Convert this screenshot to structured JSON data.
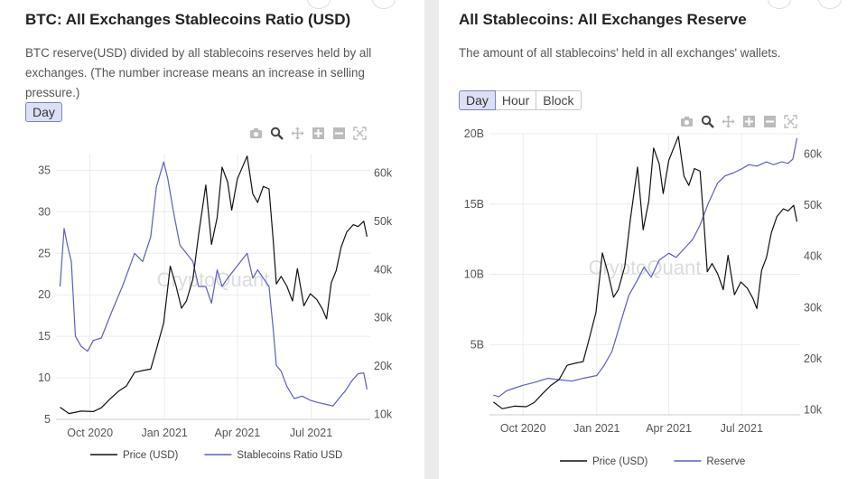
{
  "watermark": "CryptoQuant",
  "colors": {
    "price": "#111111",
    "series": "#5b5fbf",
    "grid": "#ececec"
  },
  "icons": [
    "camera-icon",
    "zoom-icon",
    "pan-icon",
    "zoom-in-icon",
    "zoom-out-icon",
    "autoscale-icon"
  ],
  "panels": [
    {
      "title": "BTC: All Exchanges Stablecoins Ratio (USD)",
      "description": "BTC reserve(USD) divided by all stablecoins reserves held by all exchanges. (The number increase means an increase in selling pressure.)",
      "tabs": [
        {
          "label": "Day",
          "active": true
        }
      ]
    },
    {
      "title": "All Stablecoins: All Exchanges Reserve",
      "description": "The amount of all stablecoins' held in all exchanges' wallets.",
      "tabs": [
        {
          "label": "Day",
          "active": true
        },
        {
          "label": "Hour",
          "active": false
        },
        {
          "label": "Block",
          "active": false
        }
      ]
    }
  ],
  "chart_data": [
    {
      "type": "line",
      "x_type": "date",
      "x_ticks": [
        "Oct 2020",
        "Jan 2021",
        "Apr 2021",
        "Jul 2021"
      ],
      "y_left": {
        "range": [
          5,
          37
        ],
        "ticks": [
          "5",
          "10",
          "15",
          "20",
          "25",
          "30",
          "35"
        ]
      },
      "y_right": {
        "range": [
          9000,
          64000
        ],
        "ticks": [
          "10k",
          "20k",
          "30k",
          "40k",
          "50k",
          "60k"
        ]
      },
      "grid": true,
      "legend_position": "bottom",
      "series": [
        {
          "name": "Price (USD)",
          "axis": "right",
          "points": [
            [
              "2020-08-25",
              11500
            ],
            [
              "2020-09-05",
              10200
            ],
            [
              "2020-09-20",
              10700
            ],
            [
              "2020-10-05",
              10600
            ],
            [
              "2020-10-15",
              11400
            ],
            [
              "2020-10-25",
              13100
            ],
            [
              "2020-11-05",
              14800
            ],
            [
              "2020-11-15",
              15900
            ],
            [
              "2020-11-25",
              18700
            ],
            [
              "2020-12-05",
              19100
            ],
            [
              "2020-12-15",
              19400
            ],
            [
              "2020-12-22",
              23500
            ],
            [
              "2020-12-31",
              29000
            ],
            [
              "2021-01-08",
              40700
            ],
            [
              "2021-01-15",
              36800
            ],
            [
              "2021-01-22",
              32000
            ],
            [
              "2021-01-28",
              33500
            ],
            [
              "2021-02-05",
              38000
            ],
            [
              "2021-02-12",
              47200
            ],
            [
              "2021-02-21",
              57500
            ],
            [
              "2021-02-28",
              45200
            ],
            [
              "2021-03-07",
              50800
            ],
            [
              "2021-03-13",
              61200
            ],
            [
              "2021-03-20",
              58100
            ],
            [
              "2021-03-25",
              52300
            ],
            [
              "2021-04-01",
              58800
            ],
            [
              "2021-04-13",
              63500
            ],
            [
              "2021-04-20",
              55700
            ],
            [
              "2021-04-26",
              53900
            ],
            [
              "2021-05-03",
              57200
            ],
            [
              "2021-05-10",
              56700
            ],
            [
              "2021-05-15",
              46400
            ],
            [
              "2021-05-19",
              37000
            ],
            [
              "2021-05-25",
              38600
            ],
            [
              "2021-06-01",
              36600
            ],
            [
              "2021-06-08",
              33500
            ],
            [
              "2021-06-14",
              40200
            ],
            [
              "2021-06-22",
              32500
            ],
            [
              "2021-06-30",
              35000
            ],
            [
              "2021-07-08",
              33800
            ],
            [
              "2021-07-15",
              31800
            ],
            [
              "2021-07-20",
              29800
            ],
            [
              "2021-07-26",
              37300
            ],
            [
              "2021-08-01",
              39800
            ],
            [
              "2021-08-07",
              44600
            ],
            [
              "2021-08-14",
              47800
            ],
            [
              "2021-08-22",
              49300
            ],
            [
              "2021-08-28",
              48900
            ],
            [
              "2021-09-04",
              50000
            ],
            [
              "2021-09-08",
              46800
            ]
          ]
        },
        {
          "name": "Stablecoins Ratio USD",
          "axis": "left",
          "points": [
            [
              "2020-08-25",
              21
            ],
            [
              "2020-08-30",
              28
            ],
            [
              "2020-09-03",
              26
            ],
            [
              "2020-09-08",
              24
            ],
            [
              "2020-09-13",
              15
            ],
            [
              "2020-09-20",
              13.8
            ],
            [
              "2020-09-28",
              13.2
            ],
            [
              "2020-10-05",
              14.5
            ],
            [
              "2020-10-15",
              14.8
            ],
            [
              "2020-10-28",
              18
            ],
            [
              "2020-11-10",
              21
            ],
            [
              "2020-11-25",
              25
            ],
            [
              "2020-12-05",
              24
            ],
            [
              "2020-12-15",
              27
            ],
            [
              "2020-12-22",
              33
            ],
            [
              "2020-12-31",
              36
            ],
            [
              "2021-01-05",
              34
            ],
            [
              "2021-01-12",
              30
            ],
            [
              "2021-01-20",
              26
            ],
            [
              "2021-01-28",
              25
            ],
            [
              "2021-02-05",
              24
            ],
            [
              "2021-02-12",
              21
            ],
            [
              "2021-02-21",
              21
            ],
            [
              "2021-02-28",
              19
            ],
            [
              "2021-03-07",
              23
            ],
            [
              "2021-03-13",
              21
            ],
            [
              "2021-03-20",
              22
            ],
            [
              "2021-03-28",
              23
            ],
            [
              "2021-04-05",
              24
            ],
            [
              "2021-04-13",
              25
            ],
            [
              "2021-04-20",
              22
            ],
            [
              "2021-04-26",
              23
            ],
            [
              "2021-05-03",
              22
            ],
            [
              "2021-05-10",
              21
            ],
            [
              "2021-05-15",
              16
            ],
            [
              "2021-05-19",
              11.5
            ],
            [
              "2021-05-25",
              10.8
            ],
            [
              "2021-06-01",
              9
            ],
            [
              "2021-06-10",
              7.5
            ],
            [
              "2021-06-20",
              7.8
            ],
            [
              "2021-06-30",
              7.3
            ],
            [
              "2021-07-10",
              7.0
            ],
            [
              "2021-07-20",
              6.8
            ],
            [
              "2021-07-28",
              6.6
            ],
            [
              "2021-08-05",
              7.6
            ],
            [
              "2021-08-12",
              8.4
            ],
            [
              "2021-08-20",
              9.6
            ],
            [
              "2021-08-28",
              10.5
            ],
            [
              "2021-09-04",
              10.6
            ],
            [
              "2021-09-08",
              8.6
            ]
          ]
        }
      ]
    },
    {
      "type": "line",
      "x_type": "date",
      "x_ticks": [
        "Oct 2020",
        "Jan 2021",
        "Apr 2021",
        "Jul 2021"
      ],
      "y_left": {
        "range": [
          0,
          20000000000
        ],
        "ticks": [
          "5B",
          "10B",
          "15B",
          "20B"
        ]
      },
      "y_right": {
        "range": [
          9000,
          64000
        ],
        "ticks": [
          "10k",
          "20k",
          "30k",
          "40k",
          "50k",
          "60k"
        ]
      },
      "grid": true,
      "legend_position": "bottom",
      "series": [
        {
          "name": "Price (USD)",
          "axis": "right",
          "points": [
            [
              "2020-08-25",
              11500
            ],
            [
              "2020-09-05",
              10200
            ],
            [
              "2020-09-20",
              10700
            ],
            [
              "2020-10-05",
              10600
            ],
            [
              "2020-10-15",
              11400
            ],
            [
              "2020-10-25",
              13100
            ],
            [
              "2020-11-05",
              14800
            ],
            [
              "2020-11-15",
              15900
            ],
            [
              "2020-11-25",
              18700
            ],
            [
              "2020-12-05",
              19100
            ],
            [
              "2020-12-15",
              19400
            ],
            [
              "2020-12-22",
              23500
            ],
            [
              "2020-12-31",
              29000
            ],
            [
              "2021-01-08",
              40700
            ],
            [
              "2021-01-15",
              36800
            ],
            [
              "2021-01-22",
              32000
            ],
            [
              "2021-01-28",
              33500
            ],
            [
              "2021-02-05",
              38000
            ],
            [
              "2021-02-12",
              47200
            ],
            [
              "2021-02-21",
              57500
            ],
            [
              "2021-02-28",
              45200
            ],
            [
              "2021-03-07",
              50800
            ],
            [
              "2021-03-13",
              61200
            ],
            [
              "2021-03-20",
              58100
            ],
            [
              "2021-03-25",
              52300
            ],
            [
              "2021-04-01",
              58800
            ],
            [
              "2021-04-13",
              63500
            ],
            [
              "2021-04-20",
              55700
            ],
            [
              "2021-04-26",
              53900
            ],
            [
              "2021-05-03",
              57200
            ],
            [
              "2021-05-10",
              56700
            ],
            [
              "2021-05-15",
              46400
            ],
            [
              "2021-05-19",
              37000
            ],
            [
              "2021-05-25",
              38600
            ],
            [
              "2021-06-01",
              36600
            ],
            [
              "2021-06-08",
              33500
            ],
            [
              "2021-06-14",
              40200
            ],
            [
              "2021-06-22",
              32500
            ],
            [
              "2021-06-30",
              35000
            ],
            [
              "2021-07-08",
              33800
            ],
            [
              "2021-07-15",
              31800
            ],
            [
              "2021-07-20",
              29800
            ],
            [
              "2021-07-26",
              37300
            ],
            [
              "2021-08-01",
              39800
            ],
            [
              "2021-08-07",
              44600
            ],
            [
              "2021-08-14",
              47800
            ],
            [
              "2021-08-22",
              49300
            ],
            [
              "2021-08-28",
              48900
            ],
            [
              "2021-09-04",
              50000
            ],
            [
              "2021-09-08",
              46800
            ]
          ]
        },
        {
          "name": "Reserve",
          "axis": "left",
          "points": [
            [
              "2020-08-25",
              1400000000
            ],
            [
              "2020-09-01",
              1300000000
            ],
            [
              "2020-09-10",
              1700000000
            ],
            [
              "2020-09-20",
              1900000000
            ],
            [
              "2020-10-01",
              2100000000
            ],
            [
              "2020-10-15",
              2300000000
            ],
            [
              "2020-11-01",
              2600000000
            ],
            [
              "2020-11-15",
              2500000000
            ],
            [
              "2020-12-01",
              2400000000
            ],
            [
              "2020-12-15",
              2600000000
            ],
            [
              "2021-01-01",
              2800000000
            ],
            [
              "2021-01-10",
              3500000000
            ],
            [
              "2021-01-20",
              4500000000
            ],
            [
              "2021-02-01",
              6800000000
            ],
            [
              "2021-02-10",
              8500000000
            ],
            [
              "2021-02-20",
              9500000000
            ],
            [
              "2021-03-01",
              10500000000
            ],
            [
              "2021-03-10",
              9800000000
            ],
            [
              "2021-03-20",
              11000000000
            ],
            [
              "2021-04-01",
              11500000000
            ],
            [
              "2021-04-10",
              11200000000
            ],
            [
              "2021-04-20",
              11800000000
            ],
            [
              "2021-05-01",
              12500000000
            ],
            [
              "2021-05-10",
              13500000000
            ],
            [
              "2021-05-20",
              15000000000
            ],
            [
              "2021-06-01",
              16500000000
            ],
            [
              "2021-06-10",
              17000000000
            ],
            [
              "2021-06-20",
              17200000000
            ],
            [
              "2021-07-01",
              17500000000
            ],
            [
              "2021-07-10",
              17800000000
            ],
            [
              "2021-07-20",
              17700000000
            ],
            [
              "2021-08-01",
              18000000000
            ],
            [
              "2021-08-10",
              17800000000
            ],
            [
              "2021-08-20",
              18000000000
            ],
            [
              "2021-08-28",
              17900000000
            ],
            [
              "2021-09-03",
              18200000000
            ],
            [
              "2021-09-08",
              19700000000
            ]
          ]
        }
      ]
    }
  ]
}
